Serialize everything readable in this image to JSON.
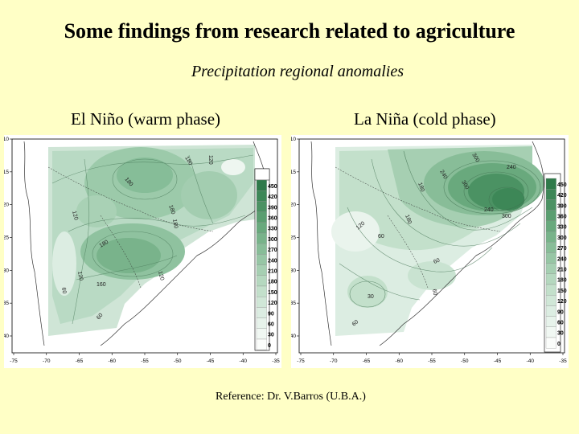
{
  "title": "Some findings from research related to agriculture",
  "subtitle": "Precipitation regional anomalies",
  "panels": {
    "left": {
      "label": "El Niño (warm phase)",
      "contour_labels": [
        "180",
        "120",
        "180",
        "180",
        "120",
        "180",
        "180",
        "120",
        "160",
        "60",
        "120",
        "60"
      ]
    },
    "right": {
      "label": "La Niña (cold phase)",
      "contour_labels": [
        "300",
        "180",
        "240",
        "300",
        "240",
        "180",
        "120",
        "60",
        "240",
        "60",
        "30",
        "60",
        "60",
        "300"
      ]
    }
  },
  "axes": {
    "x_ticks": [
      "-75",
      "-70",
      "-65",
      "-60",
      "-55",
      "-50",
      "-45",
      "-40",
      "-35"
    ],
    "y_ticks": [
      "-10",
      "-15",
      "-20",
      "-25",
      "-30",
      "-35",
      "-40"
    ]
  },
  "legend": {
    "values": [
      "450",
      "420",
      "390",
      "360",
      "330",
      "300",
      "270",
      "240",
      "210",
      "180",
      "150",
      "120",
      "90",
      "60",
      "30",
      "0"
    ],
    "colors": [
      "#2f7a4a",
      "#3d8757",
      "#4b9263",
      "#5a9e70",
      "#69a97d",
      "#78b38a",
      "#88bd98",
      "#97c6a5",
      "#a6cfb2",
      "#b5d8bf",
      "#c3e0cb",
      "#d0e7d7",
      "#dcede2",
      "#e7f3eb",
      "#f1f8f3",
      "#fbfdfb"
    ]
  },
  "reference": "Reference: Dr. V.Barros (U.B.A.)"
}
